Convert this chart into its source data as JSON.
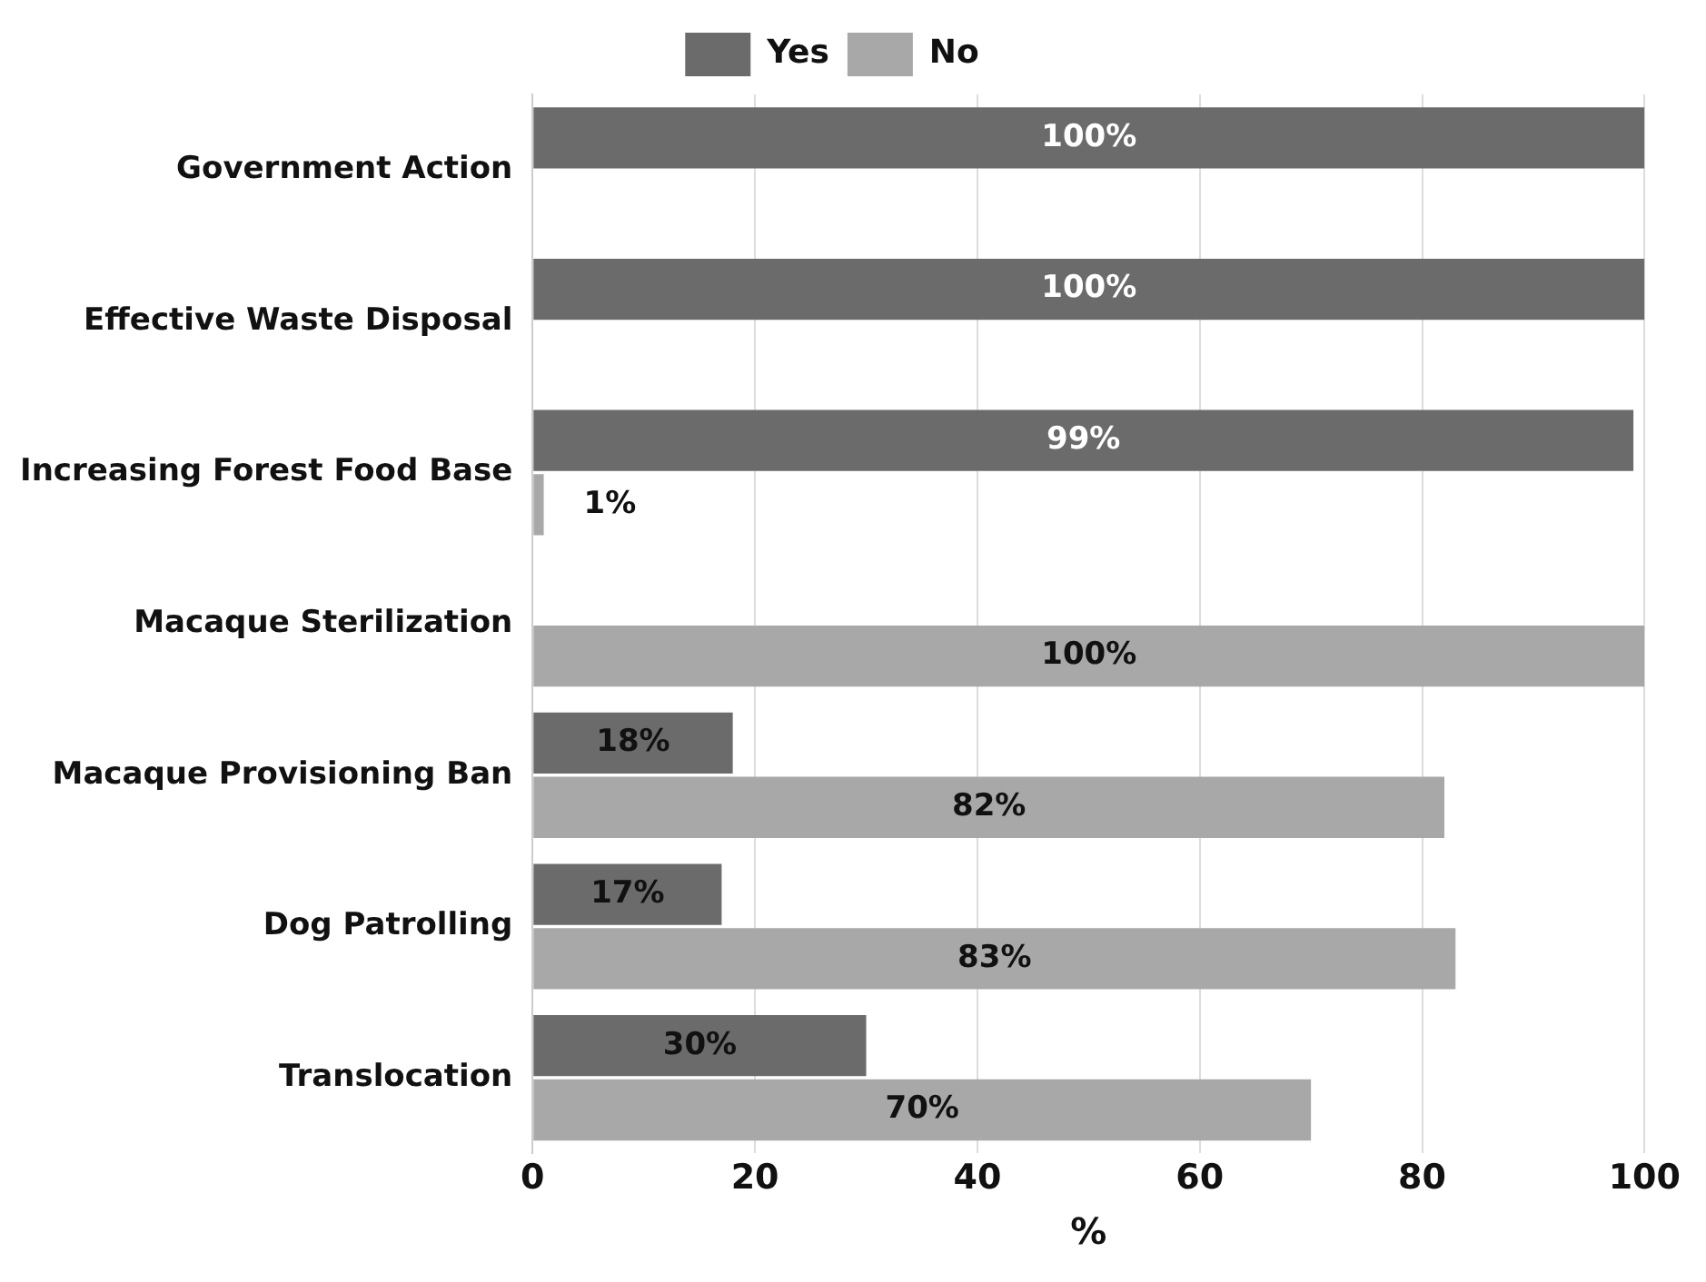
{
  "chart_data": {
    "type": "bar",
    "orientation": "horizontal",
    "xlabel": "%",
    "categories": [
      "Government Action",
      "Effective Waste Disposal",
      "Increasing Forest Food Base",
      "Macaque Sterilization",
      "Macaque Provisioning Ban",
      "Dog Patrolling",
      "Translocation"
    ],
    "series": [
      {
        "name": "Yes",
        "color": "#6b6b6b",
        "values": [
          100,
          100,
          99,
          null,
          18,
          17,
          30
        ],
        "value_labels": [
          "100%",
          "100%",
          "99%",
          null,
          "18%",
          "17%",
          "30%"
        ]
      },
      {
        "name": "No",
        "color": "#a8a8a8",
        "values": [
          null,
          null,
          1,
          100,
          82,
          83,
          70
        ],
        "value_labels": [
          null,
          null,
          "1%",
          "100%",
          "82%",
          "83%",
          "70%"
        ]
      }
    ],
    "xlim": [
      0,
      100
    ],
    "xticks": [
      0,
      20,
      40,
      60,
      80,
      100
    ],
    "grid": "x",
    "legend": "top"
  }
}
